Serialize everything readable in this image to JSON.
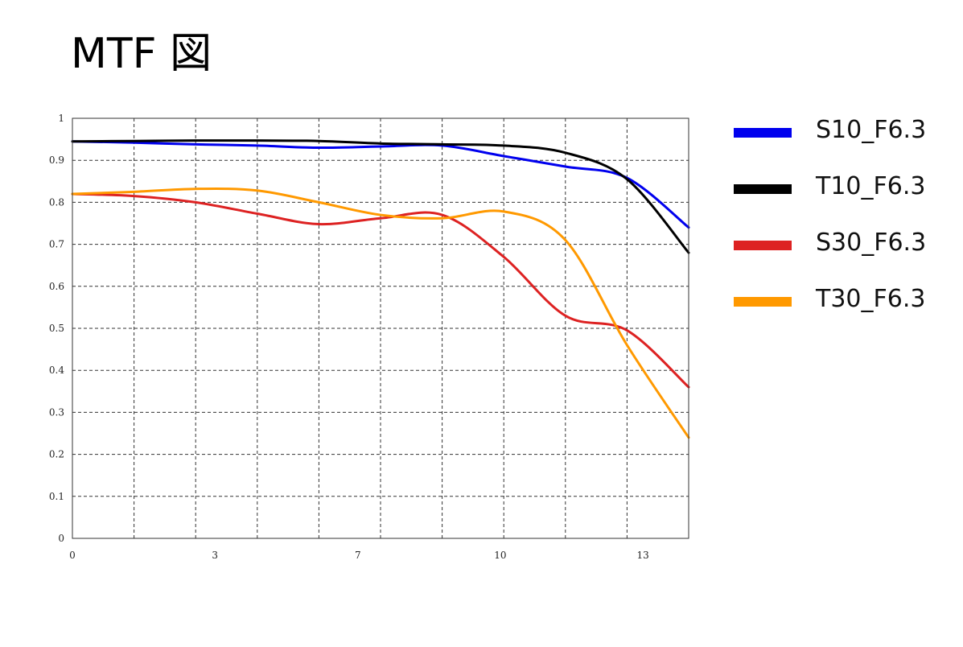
{
  "title": "MTF 図",
  "chart_data": {
    "type": "line",
    "title": "",
    "xlabel": "",
    "ylabel": "",
    "xlim": [
      0,
      14.4
    ],
    "ylim": [
      0,
      1
    ],
    "x_tick_labels": [
      "0",
      "3",
      "7",
      "10",
      "13"
    ],
    "x_tick_values": [
      0,
      3.33,
      6.67,
      10,
      13.33
    ],
    "y_ticks": [
      0,
      0.1,
      0.2,
      0.3,
      0.4,
      0.5,
      0.6,
      0.7,
      0.8,
      0.9,
      1
    ],
    "y_tick_labels": [
      "0",
      "0.1",
      "0.2",
      "0.3",
      "0.4",
      "0.5",
      "0.6",
      "0.7",
      "0.8",
      "0.9",
      "1"
    ],
    "grid": true,
    "legend_position": "right",
    "series": [
      {
        "name": "S10_F6.3",
        "color": "#0000ee",
        "x": [
          0,
          1.44,
          2.88,
          4.32,
          5.76,
          7.2,
          8.64,
          10.08,
          11.52,
          12.96,
          14.4
        ],
        "y": [
          0.945,
          0.942,
          0.938,
          0.935,
          0.93,
          0.933,
          0.935,
          0.91,
          0.885,
          0.858,
          0.74
        ]
      },
      {
        "name": "T10_F6.3",
        "color": "#000000",
        "x": [
          0,
          1.44,
          2.88,
          4.32,
          5.76,
          7.2,
          8.64,
          10.08,
          11.52,
          12.96,
          14.4
        ],
        "y": [
          0.945,
          0.946,
          0.947,
          0.947,
          0.946,
          0.94,
          0.938,
          0.935,
          0.918,
          0.855,
          0.68
        ]
      },
      {
        "name": "S30_F6.3",
        "color": "#dd2222",
        "x": [
          0,
          1.44,
          2.88,
          4.32,
          5.76,
          7.2,
          8.64,
          10.08,
          11.52,
          12.96,
          14.4
        ],
        "y": [
          0.82,
          0.815,
          0.8,
          0.773,
          0.748,
          0.762,
          0.77,
          0.67,
          0.53,
          0.495,
          0.36
        ]
      },
      {
        "name": "T30_F6.3",
        "color": "#ff9900",
        "x": [
          0,
          1.44,
          2.88,
          4.32,
          5.76,
          7.2,
          8.64,
          10.08,
          11.52,
          12.96,
          14.4
        ],
        "y": [
          0.82,
          0.825,
          0.832,
          0.828,
          0.8,
          0.77,
          0.762,
          0.778,
          0.71,
          0.46,
          0.24
        ]
      }
    ]
  }
}
